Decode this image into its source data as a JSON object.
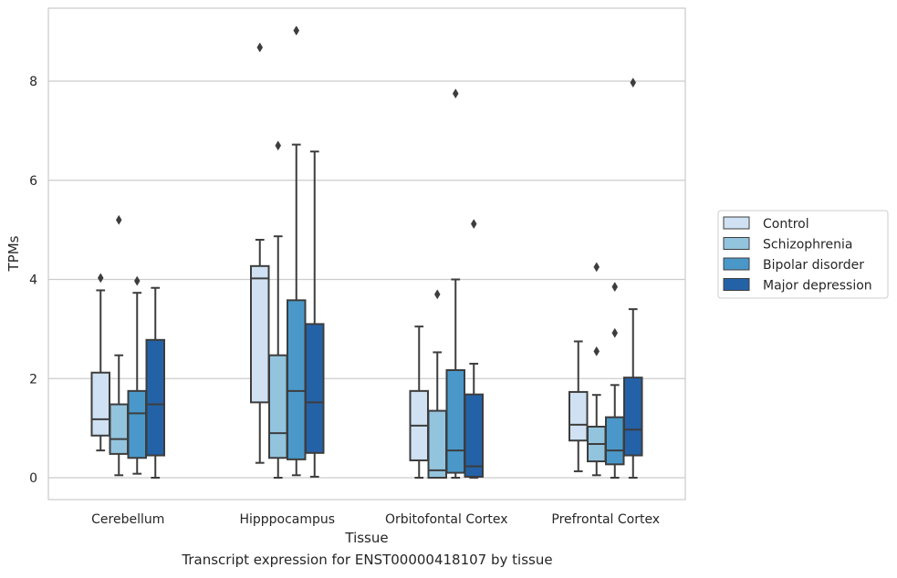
{
  "chart_data": {
    "type": "box",
    "ylabel": "TPMs",
    "xlabel": "Tissue",
    "caption": "Transcript expression for ENST00000418107 by tissue",
    "ylim": [
      -0.45,
      9.6
    ],
    "yticks": [
      0,
      2,
      4,
      6,
      8
    ],
    "grid": "horizontal",
    "legend_position": "right",
    "categories": [
      "Cerebellum",
      "Hipppocampus",
      "Orbitofontal Cortex",
      "Prefrontal Cortex"
    ],
    "series": [
      {
        "name": "Control",
        "color": "#cfe1f2",
        "boxes": [
          {
            "whislo": 0.55,
            "q1": 0.85,
            "med": 1.18,
            "q3": 2.12,
            "whishi": 3.78,
            "fliers": [
              4.03
            ]
          },
          {
            "whislo": 0.3,
            "q1": 1.52,
            "med": 4.02,
            "q3": 4.27,
            "whishi": 4.8,
            "fliers": [
              8.68
            ]
          },
          {
            "whislo": 0.0,
            "q1": 0.35,
            "med": 1.05,
            "q3": 1.75,
            "whishi": 3.05,
            "fliers": []
          },
          {
            "whislo": 0.13,
            "q1": 0.75,
            "med": 1.07,
            "q3": 1.73,
            "whishi": 2.75,
            "fliers": []
          }
        ]
      },
      {
        "name": "Schizophrenia",
        "color": "#93c4de",
        "boxes": [
          {
            "whislo": 0.05,
            "q1": 0.48,
            "med": 0.78,
            "q3": 1.48,
            "whishi": 2.47,
            "fliers": [
              5.2
            ]
          },
          {
            "whislo": 0.0,
            "q1": 0.4,
            "med": 0.9,
            "q3": 2.47,
            "whishi": 4.87,
            "fliers": [
              6.7
            ]
          },
          {
            "whislo": 0.0,
            "q1": 0.0,
            "med": 0.15,
            "q3": 1.35,
            "whishi": 2.53,
            "fliers": [
              3.7
            ]
          },
          {
            "whislo": 0.05,
            "q1": 0.33,
            "med": 0.68,
            "q3": 1.03,
            "whishi": 1.67,
            "fliers": [
              2.55,
              4.25
            ]
          }
        ]
      },
      {
        "name": "Bipolar disorder",
        "color": "#4a98c9",
        "boxes": [
          {
            "whislo": 0.08,
            "q1": 0.4,
            "med": 1.3,
            "q3": 1.75,
            "whishi": 3.73,
            "fliers": [
              3.97
            ]
          },
          {
            "whislo": 0.05,
            "q1": 0.37,
            "med": 1.75,
            "q3": 3.58,
            "whishi": 6.72,
            "fliers": [
              9.02
            ]
          },
          {
            "whislo": 0.0,
            "q1": 0.1,
            "med": 0.55,
            "q3": 2.17,
            "whishi": 4.0,
            "fliers": [
              7.75
            ]
          },
          {
            "whislo": 0.0,
            "q1": 0.27,
            "med": 0.55,
            "q3": 1.22,
            "whishi": 1.87,
            "fliers": [
              2.92,
              3.85
            ]
          }
        ]
      },
      {
        "name": "Major depression",
        "color": "#2462a8",
        "boxes": [
          {
            "whislo": 0.0,
            "q1": 0.45,
            "med": 1.48,
            "q3": 2.78,
            "whishi": 3.83,
            "fliers": []
          },
          {
            "whislo": 0.02,
            "q1": 0.5,
            "med": 1.52,
            "q3": 3.1,
            "whishi": 6.58,
            "fliers": []
          },
          {
            "whislo": 0.0,
            "q1": 0.02,
            "med": 0.23,
            "q3": 1.68,
            "whishi": 2.3,
            "fliers": [
              5.12
            ]
          },
          {
            "whislo": 0.0,
            "q1": 0.45,
            "med": 0.97,
            "q3": 2.02,
            "whishi": 3.4,
            "fliers": [
              7.97
            ]
          }
        ]
      }
    ]
  }
}
